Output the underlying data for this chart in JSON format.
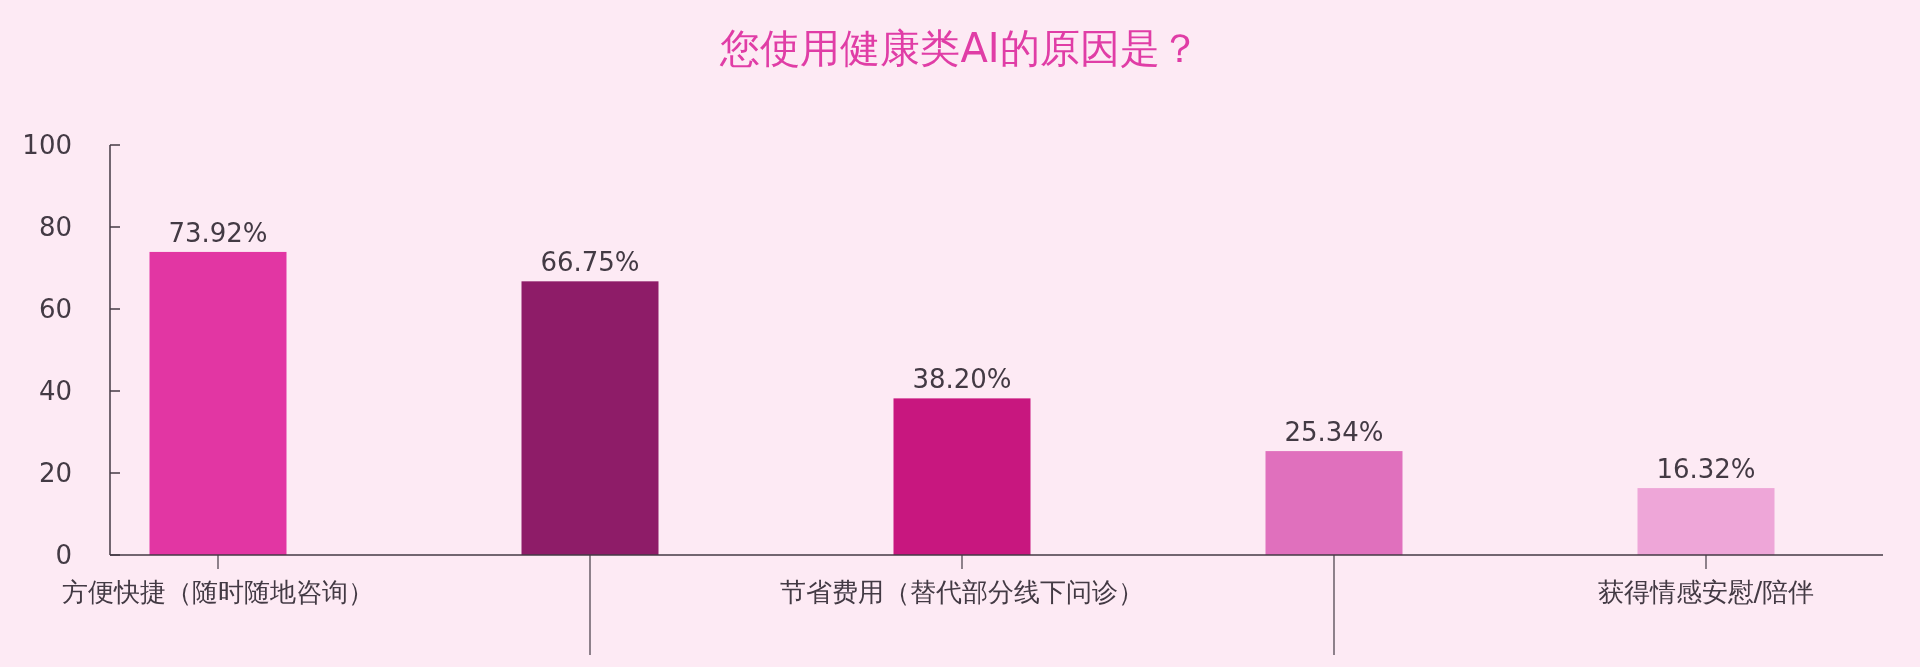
{
  "chart_data": {
    "type": "bar",
    "title": "您使用健康类AI的原因是？",
    "categories": [
      "方便快捷（随时随地咨询）",
      null,
      "节省费用（替代部分线下问诊）",
      null,
      "获得情感安慰/陪伴"
    ],
    "values": [
      73.92,
      66.75,
      38.2,
      25.34,
      16.32
    ],
    "colors": [
      "#e236a3",
      "#8e1c68",
      "#c8177f",
      "#e070bd",
      "#eea6d8"
    ],
    "value_labels": [
      "73.92%",
      "66.75%",
      "38.20%",
      "25.34%",
      "16.32%"
    ],
    "ylim": [
      0,
      100
    ],
    "yticks": [
      0,
      20,
      40,
      60,
      80,
      100
    ],
    "grid": false
  }
}
